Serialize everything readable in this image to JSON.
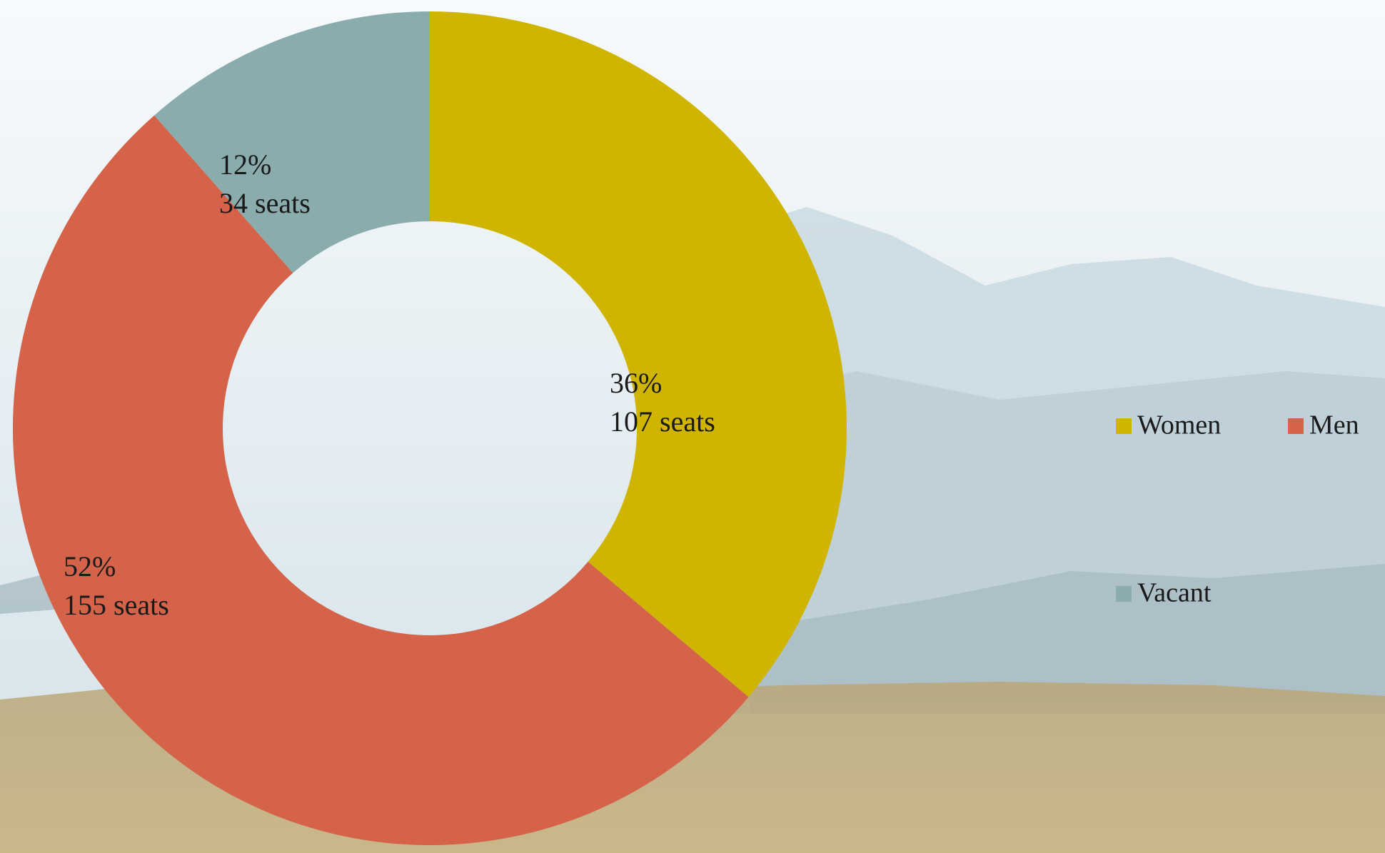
{
  "chart_data": {
    "type": "donut",
    "categories": [
      "Women",
      "Men",
      "Vacant"
    ],
    "values": [
      107,
      155,
      34
    ],
    "value_labels": [
      "107 seats",
      "155 seats",
      "34 seats"
    ],
    "percents": [
      36,
      52,
      12
    ],
    "percent_labels": [
      "36%",
      "52%",
      "12%"
    ],
    "colors": [
      "#cfb500",
      "#d4634a",
      "#8aacad"
    ],
    "legend": "right"
  }
}
